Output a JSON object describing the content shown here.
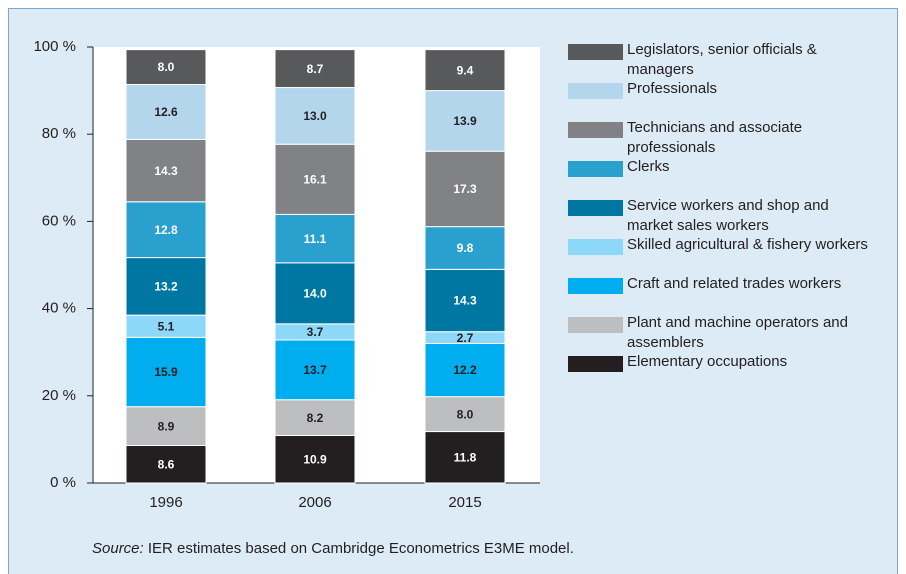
{
  "chart_data": {
    "type": "stacked_bar",
    "categories": [
      "1996",
      "2006",
      "2015"
    ],
    "series": [
      {
        "name": "Elementary occupations",
        "color": "#231f20",
        "label_color": "#ffffff",
        "values": [
          8.6,
          10.9,
          11.8
        ],
        "value_labels": [
          "8.6",
          "10.9",
          "11.8"
        ]
      },
      {
        "name": "Plant and machine operators and assemblers",
        "color": "#bcbec0",
        "label_color": "#231f20",
        "values": [
          8.9,
          8.2,
          8.0
        ],
        "value_labels": [
          "8.9",
          "8.2",
          "8.0"
        ]
      },
      {
        "name": "Craft and related trades workers",
        "color": "#00aeef",
        "label_color": "#231f20",
        "values": [
          15.9,
          13.7,
          12.2
        ],
        "value_labels": [
          "15.9",
          "13.7",
          "12.2"
        ]
      },
      {
        "name": "Skilled agricultural & fishery workers",
        "color": "#8dd8f8",
        "label_color": "#231f20",
        "values": [
          5.1,
          3.7,
          2.7
        ],
        "value_labels": [
          "5.1",
          "3.7",
          "2.7"
        ]
      },
      {
        "name": "Service workers and shop and market sales workers",
        "color": "#0077a3",
        "label_color": "#ffffff",
        "values": [
          13.2,
          14.0,
          14.3
        ],
        "value_labels": [
          "13.2",
          "14.0",
          "14.3"
        ]
      },
      {
        "name": "Clerks",
        "color": "#2aa0cf",
        "label_color": "#ffffff",
        "values": [
          12.8,
          11.1,
          9.8
        ],
        "value_labels": [
          "12.8",
          "11.1",
          "9.8"
        ]
      },
      {
        "name": "Technicians and associate professionals",
        "color": "#808285",
        "label_color": "#ffffff",
        "values": [
          14.3,
          16.1,
          17.3
        ],
        "value_labels": [
          "14.3",
          "16.1",
          "17.3"
        ]
      },
      {
        "name": "Professionals",
        "color": "#b3d6ec",
        "label_color": "#231f20",
        "values": [
          12.6,
          13.0,
          13.9
        ],
        "value_labels": [
          "12.6",
          "13.0",
          "13.9"
        ]
      },
      {
        "name": "Legislators, senior officials & managers",
        "color": "#58595b",
        "label_color": "#ffffff",
        "values": [
          8.0,
          8.7,
          9.4
        ],
        "value_labels": [
          "8.0",
          "8.7",
          "9.4"
        ]
      }
    ],
    "ylim": [
      0,
      100
    ],
    "yticks": [
      {
        "value": 0,
        "label": "0 %"
      },
      {
        "value": 20,
        "label": "20 %"
      },
      {
        "value": 40,
        "label": "40 %"
      },
      {
        "value": 60,
        "label": "60 %"
      },
      {
        "value": 80,
        "label": "80 %"
      },
      {
        "value": 100,
        "label": "100 %"
      }
    ],
    "legend": "right",
    "source_label": "Source:",
    "source_text": "IER estimates based on Cambridge Econometrics E3ME model."
  }
}
